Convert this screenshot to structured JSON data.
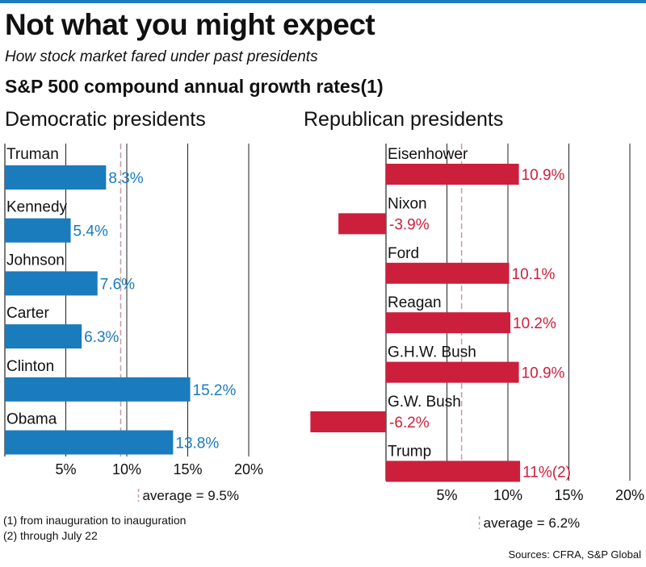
{
  "header": {
    "title": "Not what you might expect",
    "subtitle": "How stock market fared under past presidents",
    "heading": "S&P 500 compound annual growth rates(1)"
  },
  "colors": {
    "accent_line": "#1a7bbd",
    "democratic": "#1a7bbd",
    "republican": "#cc1f3c",
    "average_line": "#c89aa6"
  },
  "chart_data": [
    {
      "type": "bar",
      "orientation": "horizontal",
      "title": "Democratic presidents",
      "categories": [
        "Truman",
        "Kennedy",
        "Johnson",
        "Carter",
        "Clinton",
        "Obama"
      ],
      "values": [
        8.3,
        5.4,
        7.6,
        6.3,
        15.2,
        13.8
      ],
      "value_labels": [
        "8.3%",
        "5.4%",
        "7.6%",
        "6.3%",
        "15.2%",
        "13.8%"
      ],
      "xlim": [
        0,
        20
      ],
      "ticks": [
        5,
        10,
        15,
        20
      ],
      "tick_labels": [
        "5%",
        "10%",
        "15%",
        "20%"
      ],
      "average": 9.5,
      "average_label": "average = 9.5%",
      "color": "#1a7bbd",
      "grid": true
    },
    {
      "type": "bar",
      "orientation": "horizontal",
      "title": "Republican presidents",
      "categories": [
        "Eisenhower",
        "Nixon",
        "Ford",
        "Reagan",
        "G.H.W. Bush",
        "G.W. Bush",
        "Trump"
      ],
      "values": [
        10.9,
        -3.9,
        10.1,
        10.2,
        10.9,
        -6.2,
        11
      ],
      "value_labels": [
        "10.9%",
        "-3.9%",
        "10.1%",
        "10.2%",
        "10.9%",
        "-6.2%",
        "11%(2)"
      ],
      "xlim": [
        -6.2,
        20
      ],
      "ticks": [
        5,
        10,
        15,
        20
      ],
      "tick_labels": [
        "5%",
        "10%",
        "15%",
        "20%"
      ],
      "average": 6.2,
      "average_label": "average = 6.2%",
      "color": "#cc1f3c",
      "grid": true
    }
  ],
  "footnotes": [
    "(1) from inauguration to inauguration",
    "(2) through July 22"
  ],
  "source": "Sources: CFRA, S&P Global"
}
